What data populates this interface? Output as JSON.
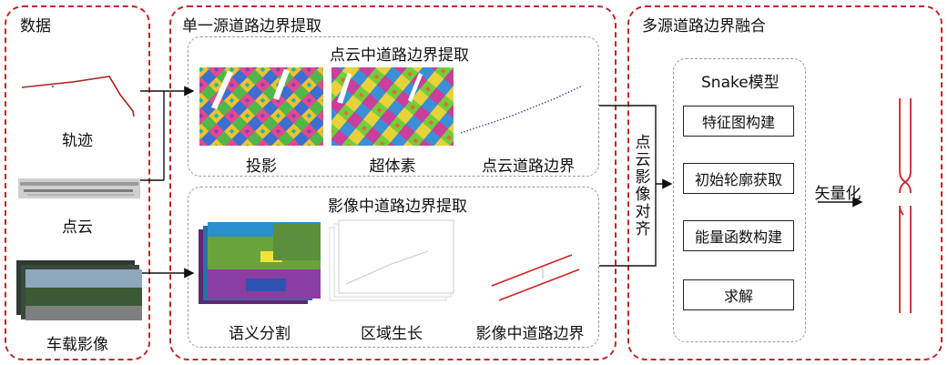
{
  "data_panel": {
    "title": "数据",
    "items": [
      "轨迹",
      "点云",
      "车载影像"
    ]
  },
  "single_source_panel": {
    "title": "单一源道路边界提取",
    "pointcloud_group": {
      "title": "点云中道路边界提取",
      "steps": [
        "投影",
        "超体素",
        "点云道路边界"
      ]
    },
    "image_group": {
      "title": "影像中道路边界提取",
      "steps": [
        "语义分割",
        "区域生长",
        "影像中道路边界"
      ]
    }
  },
  "fusion_panel": {
    "title": "多源道路边界融合",
    "alignment_label": "点云影像对齐",
    "snake_group": {
      "title": "Snake模型",
      "steps": [
        "特征图构建",
        "初始轮廓获取",
        "能量函数构建",
        "求解"
      ]
    },
    "vectorize_label": "矢量化"
  },
  "colors": {
    "panel_border": "#c0282b",
    "group_border": "#9a9a9a",
    "road_boundary": "#d32222"
  }
}
